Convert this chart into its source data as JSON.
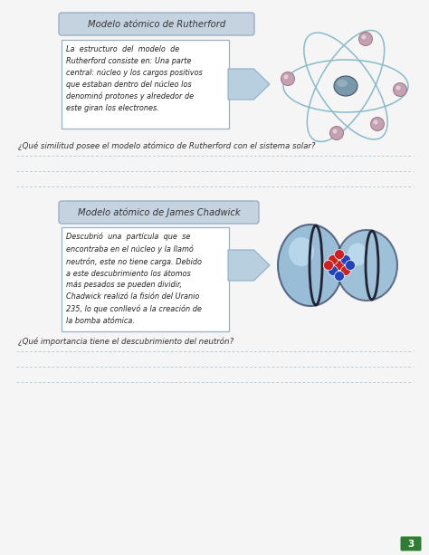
{
  "page_bg": "#f5f5f5",
  "section1_title": "Modelo atómico de Rutherford",
  "section1_text": "La  estructuro  del  modelo  de\nRutherford consiste en: Una parte\ncentral: núcleo y los cargos positivos\nque estaban dentro del núcleo los\ndenominó protones y alrededor de\neste giran los electrones.",
  "section1_question": "¿Qué similitud posee el modelo atómico de Rutherford con el sistema solar?",
  "section2_title": "Modelo atómico de James Chadwick",
  "section2_text": "Descubrió  una  partícula  que  se\nencontraba en el núcleo y la llamó\nneutrón, este no tiene carga. Debido\na este descubrimiento los átomos\nmás pesados se pueden dividir,\nChadwick realizó la fisión del Uranio\n235, lo que conllevó a la creación de\nla bomba atómica.",
  "section2_question": "¿Qué importancia tiene el descubrimiento del neutrón?",
  "title_box_color": "#c5d3e0",
  "title_box_border": "#9ab0c4",
  "text_box_border": "#9ab0c4",
  "arrow_color": "#b8cfe0",
  "arrow_border": "#90b0c8",
  "line_color": "#aabbc8",
  "page_number": "3",
  "page_num_bg": "#2e7d32",
  "atom_orbit_color": "#88bbcc",
  "atom_nucleus_color": "#778899",
  "electron_color": "#c4a0b0",
  "electron_border": "#997788",
  "fission_sphere_color": "#7aabcc",
  "fission_sphere_edge": "#334466",
  "proton_color": "#cc2222",
  "neutron_color": "#2244bb"
}
